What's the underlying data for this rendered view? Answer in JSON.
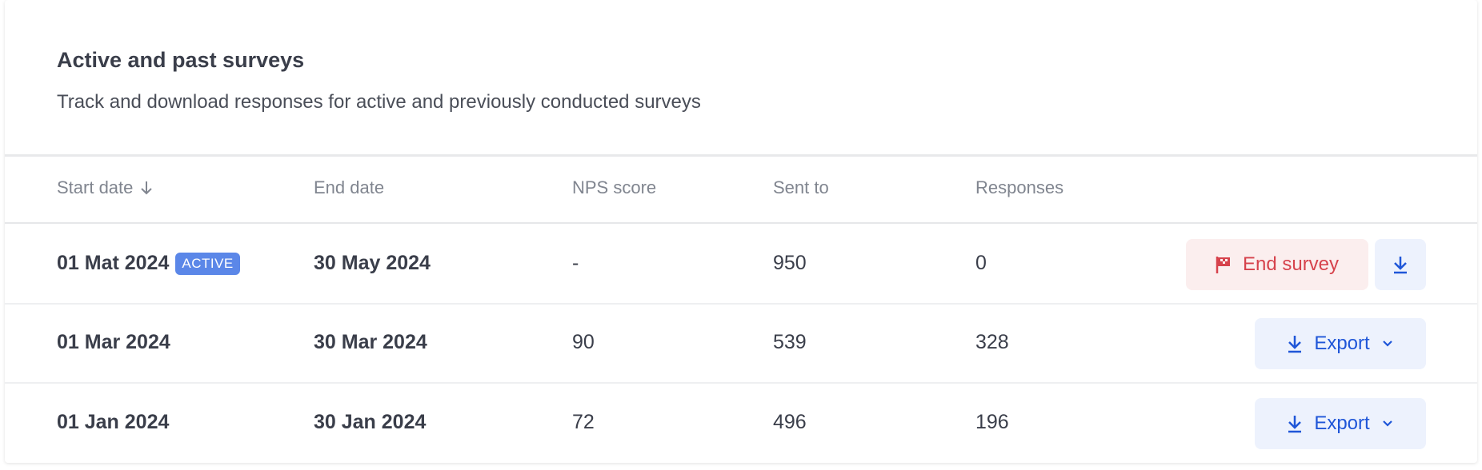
{
  "header": {
    "title": "Active and past surveys",
    "subtitle": "Track and download responses for active and previously conducted surveys"
  },
  "table": {
    "columns": [
      "Start date",
      "End date",
      "NPS score",
      "Sent to",
      "Responses"
    ],
    "sort": {
      "column": "Start date",
      "direction": "descending",
      "icon": "arrow-down-icon"
    },
    "rows": [
      {
        "start": "01 Mat 2024",
        "badge": "ACTIVE",
        "end": "30 May 2024",
        "nps": "-",
        "sent": "950",
        "responses": "0",
        "action": "End survey"
      },
      {
        "start": "01 Mar 2024",
        "end": "30 Mar 2024",
        "nps": "90",
        "sent": "539",
        "responses": "328",
        "action": "Export"
      },
      {
        "start": "01 Jan 2024",
        "end": "30 Jan 2024",
        "nps": "72",
        "sent": "496",
        "responses": "196",
        "action": "Export"
      }
    ]
  },
  "colors": {
    "accent": "#1f56d8",
    "danger": "#d6424c",
    "badge": "#5b87e8"
  }
}
